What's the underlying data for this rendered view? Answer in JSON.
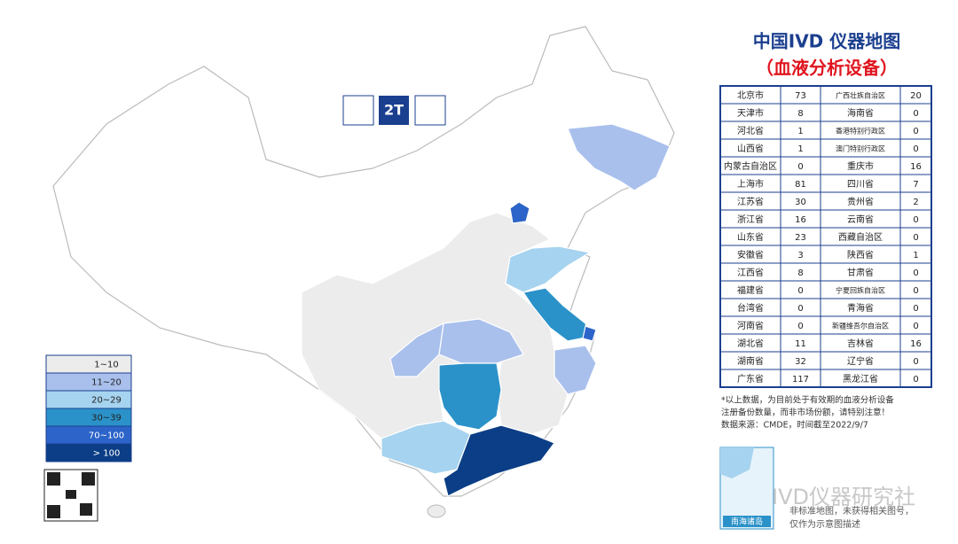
{
  "title": "中国IVD 仪器地图",
  "subtitle": "（血液分析设备）",
  "logo": {
    "badge": "2T"
  },
  "table": {
    "rows": [
      [
        "北京市",
        73,
        "广西壮族自治区",
        20
      ],
      [
        "天津市",
        8,
        "海南省",
        0
      ],
      [
        "河北省",
        1,
        "香港特别行政区",
        0
      ],
      [
        "山西省",
        1,
        "澳门特别行政区",
        0
      ],
      [
        "内蒙古自治区",
        0,
        "重庆市",
        16
      ],
      [
        "上海市",
        81,
        "四川省",
        7
      ],
      [
        "江苏省",
        30,
        "贵州省",
        2
      ],
      [
        "浙江省",
        16,
        "云南省",
        0
      ],
      [
        "山东省",
        23,
        "西藏自治区",
        0
      ],
      [
        "安徽省",
        3,
        "陕西省",
        1
      ],
      [
        "江西省",
        8,
        "甘肃省",
        0
      ],
      [
        "福建省",
        0,
        "宁夏回族自治区",
        0
      ],
      [
        "台湾省",
        0,
        "青海省",
        0
      ],
      [
        "河南省",
        0,
        "新疆维吾尔自治区",
        0
      ],
      [
        "湖北省",
        11,
        "吉林省",
        16
      ],
      [
        "湖南省",
        32,
        "辽宁省",
        0
      ],
      [
        "广东省",
        117,
        "黑龙江省",
        0
      ]
    ]
  },
  "note": [
    "*以上数据，为目前处于有效期的血液分析设备",
    "注册备份数量，而非市场份额，请特别注意！",
    "数据来源：CMDE，时间截至2022/9/7"
  ],
  "legend": [
    {
      "label": "1~10",
      "color": "#ececec"
    },
    {
      "label": "11~20",
      "color": "#a9c0ec"
    },
    {
      "label": "20~29",
      "color": "#a6d3ef"
    },
    {
      "label": "30~39",
      "color": "#2b92c9"
    },
    {
      "label": "70~100",
      "color": "#2c64c9"
    },
    {
      "label": "> 100",
      "color": "#0b3e86"
    }
  ],
  "inset_label": "南海诸岛",
  "disclaimer": [
    "非标准地图，未获得相关图号，",
    "仅作为示意图描述"
  ],
  "watermark": "IVD仪器研究社"
}
